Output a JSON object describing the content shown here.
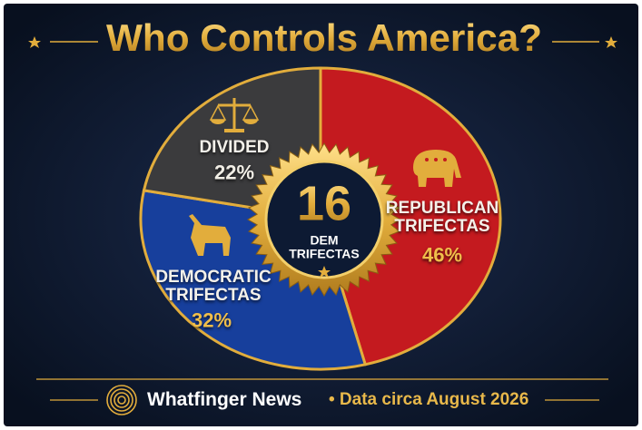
{
  "header": {
    "title": "Who Controls America?"
  },
  "chart_data": {
    "type": "pie",
    "categories": [
      "REPUBLICAN TRIFECTAS",
      "DEMOCRATIC TRIFECTAS",
      "DIVIDED"
    ],
    "values": [
      46,
      32,
      22
    ],
    "value_labels": [
      "46%",
      "32%",
      "22%"
    ],
    "colors": [
      "#c41a1f",
      "#173f9c",
      "#3b3b3d"
    ],
    "start_angle": 0,
    "direction": "clockwise"
  },
  "badge": {
    "number": 16,
    "text": "DEM TRIFECTAS"
  },
  "footer": {
    "source": "Whatfinger News",
    "note": "• Data circa August 2026"
  }
}
